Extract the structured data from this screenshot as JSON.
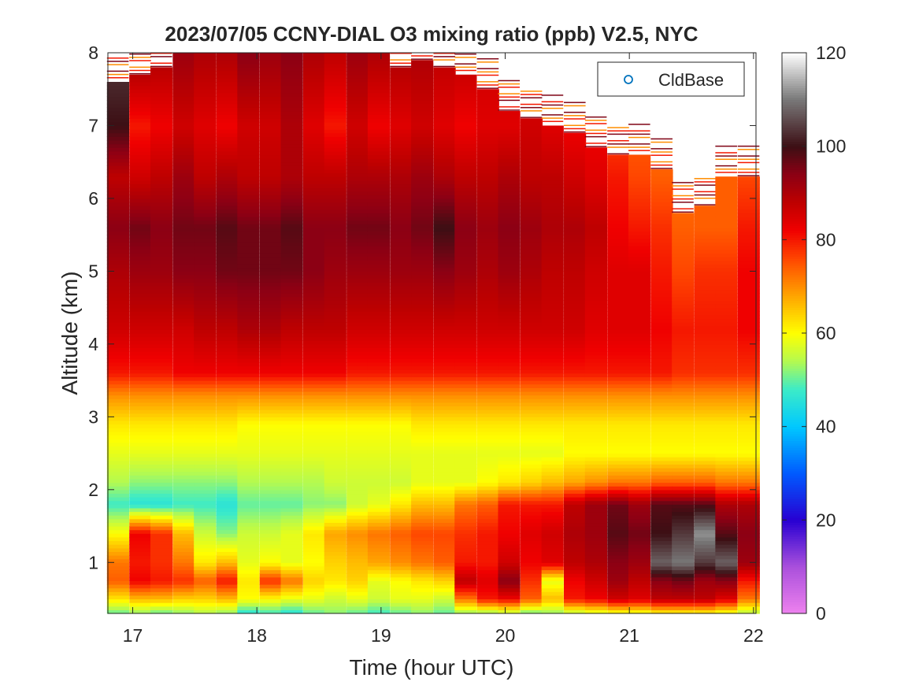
{
  "chart_data": {
    "type": "heatmap",
    "title": "2023/07/05 CCNY-DIAL O3 mixing ratio (ppb) V2.5, NYC",
    "xlabel": "Time (hour UTC)",
    "ylabel": "Altitude (km)",
    "xlim": [
      16.8,
      22.02
    ],
    "ylim": [
      0.3,
      8
    ],
    "xticks": [
      "17",
      "18",
      "19",
      "20",
      "21",
      "22"
    ],
    "yticks": [
      "1",
      "2",
      "3",
      "4",
      "5",
      "6",
      "7",
      "8"
    ],
    "colorbar": {
      "min": 0,
      "max": 120,
      "ticks": [
        "0",
        "20",
        "40",
        "60",
        "80",
        "100",
        "120"
      ]
    },
    "legend": {
      "position": "top-right",
      "entries": [
        "CldBase"
      ],
      "marker": "circle",
      "marker_color": "#0072bd"
    },
    "grid": false,
    "profile_times": [
      16.88,
      17.06,
      17.23,
      17.41,
      17.58,
      17.76,
      17.93,
      18.11,
      18.28,
      18.46,
      18.63,
      18.81,
      18.98,
      19.16,
      19.33,
      19.51,
      19.68,
      19.86,
      20.03,
      20.21,
      20.38,
      20.56,
      20.73,
      20.91,
      21.08,
      21.26,
      21.43,
      21.61,
      21.78,
      21.96
    ],
    "top_altitude_km": [
      7.6,
      7.7,
      7.8,
      8.0,
      8.0,
      8.0,
      8.0,
      8.0,
      8.0,
      8.0,
      8.0,
      8.0,
      8.0,
      7.8,
      7.9,
      7.8,
      7.7,
      7.5,
      7.2,
      7.1,
      7.0,
      6.9,
      6.7,
      6.6,
      6.6,
      6.4,
      5.8,
      5.9,
      6.3,
      6.3
    ],
    "ozone_ppb_profile_description_levels_km": [
      0.3,
      0.5,
      0.75,
      1.0,
      1.4,
      1.8,
      2.1,
      2.5,
      2.9,
      3.3,
      3.6,
      4.2,
      5.0,
      5.6,
      6.3,
      7.0,
      8.0
    ],
    "series": [
      {
        "name": "16.88",
        "values": [
          50,
          62,
          74,
          72,
          60,
          48,
          54,
          58,
          62,
          70,
          80,
          86,
          90,
          94,
          88,
          100,
          104
        ]
      },
      {
        "name": "17.06",
        "values": [
          52,
          66,
          82,
          80,
          82,
          46,
          52,
          58,
          62,
          70,
          80,
          86,
          92,
          96,
          86,
          80,
          92
        ]
      },
      {
        "name": "17.23",
        "values": [
          50,
          66,
          80,
          78,
          78,
          46,
          52,
          58,
          62,
          70,
          80,
          86,
          92,
          94,
          88,
          82,
          90
        ]
      },
      {
        "name": "17.41",
        "values": [
          52,
          64,
          78,
          72,
          66,
          48,
          52,
          58,
          62,
          70,
          82,
          86,
          94,
          96,
          92,
          86,
          92
        ]
      },
      {
        "name": "17.58",
        "values": [
          54,
          64,
          74,
          62,
          56,
          48,
          52,
          58,
          62,
          70,
          82,
          88,
          94,
          96,
          88,
          84,
          90
        ]
      },
      {
        "name": "17.76",
        "values": [
          52,
          66,
          80,
          66,
          52,
          46,
          52,
          58,
          62,
          70,
          82,
          88,
          96,
          98,
          90,
          82,
          90
        ]
      },
      {
        "name": "17.93",
        "values": [
          46,
          60,
          62,
          58,
          56,
          50,
          54,
          58,
          60,
          70,
          82,
          90,
          96,
          96,
          88,
          86,
          94
        ]
      },
      {
        "name": "18.11",
        "values": [
          48,
          60,
          78,
          60,
          56,
          50,
          54,
          58,
          60,
          70,
          82,
          90,
          96,
          96,
          88,
          86,
          92
        ]
      },
      {
        "name": "18.28",
        "values": [
          46,
          58,
          72,
          58,
          58,
          50,
          54,
          58,
          60,
          70,
          82,
          88,
          96,
          98,
          90,
          90,
          94
        ]
      },
      {
        "name": "18.46",
        "values": [
          50,
          58,
          64,
          60,
          62,
          52,
          54,
          58,
          60,
          70,
          82,
          88,
          94,
          94,
          88,
          84,
          90
        ]
      },
      {
        "name": "18.63",
        "values": [
          52,
          56,
          62,
          64,
          68,
          52,
          56,
          58,
          60,
          70,
          82,
          88,
          92,
          94,
          88,
          80,
          88
        ]
      },
      {
        "name": "18.81",
        "values": [
          50,
          58,
          64,
          66,
          70,
          56,
          56,
          58,
          60,
          70,
          80,
          86,
          92,
          96,
          90,
          86,
          92
        ]
      },
      {
        "name": "18.98",
        "values": [
          48,
          56,
          58,
          68,
          72,
          58,
          56,
          58,
          60,
          70,
          80,
          86,
          92,
          96,
          90,
          82,
          90
        ]
      },
      {
        "name": "19.16",
        "values": [
          50,
          58,
          60,
          70,
          74,
          62,
          56,
          58,
          60,
          70,
          80,
          86,
          92,
          94,
          90,
          84,
          90
        ]
      },
      {
        "name": "19.33",
        "values": [
          52,
          58,
          62,
          72,
          76,
          66,
          58,
          58,
          62,
          70,
          80,
          86,
          92,
          96,
          92,
          86,
          90
        ]
      },
      {
        "name": "19.51",
        "values": [
          50,
          56,
          64,
          74,
          76,
          66,
          58,
          58,
          62,
          70,
          80,
          86,
          94,
          100,
          90,
          84,
          88
        ]
      },
      {
        "name": "19.68",
        "values": [
          52,
          72,
          88,
          80,
          78,
          72,
          58,
          58,
          62,
          70,
          80,
          86,
          92,
          94,
          88,
          82,
          88
        ]
      },
      {
        "name": "19.86",
        "values": [
          52,
          80,
          84,
          80,
          80,
          74,
          60,
          58,
          62,
          70,
          80,
          86,
          90,
          92,
          88,
          84,
          86
        ]
      },
      {
        "name": "20.03",
        "values": [
          54,
          82,
          94,
          86,
          82,
          80,
          62,
          58,
          62,
          70,
          80,
          86,
          92,
          94,
          90,
          84,
          86
        ]
      },
      {
        "name": "20.21",
        "values": [
          50,
          74,
          78,
          82,
          84,
          80,
          64,
          58,
          62,
          70,
          80,
          86,
          90,
          92,
          88,
          86,
          86
        ]
      },
      {
        "name": "20.38",
        "values": [
          52,
          66,
          58,
          84,
          86,
          80,
          66,
          58,
          62,
          70,
          80,
          86,
          88,
          90,
          88,
          84,
          84
        ]
      },
      {
        "name": "20.56",
        "values": [
          54,
          80,
          82,
          88,
          90,
          88,
          68,
          60,
          62,
          70,
          80,
          86,
          88,
          90,
          86,
          82,
          82
        ]
      },
      {
        "name": "20.73",
        "values": [
          56,
          82,
          86,
          90,
          92,
          92,
          70,
          60,
          62,
          70,
          80,
          84,
          86,
          88,
          84,
          82,
          80
        ]
      },
      {
        "name": "20.91",
        "values": [
          58,
          86,
          92,
          94,
          98,
          96,
          72,
          60,
          62,
          70,
          80,
          84,
          84,
          82,
          80,
          76,
          78
        ]
      },
      {
        "name": "21.08",
        "values": [
          58,
          84,
          88,
          92,
          96,
          92,
          72,
          60,
          62,
          70,
          80,
          84,
          84,
          80,
          76,
          74,
          76
        ]
      },
      {
        "name": "21.26",
        "values": [
          60,
          88,
          94,
          108,
          100,
          98,
          74,
          60,
          62,
          70,
          80,
          82,
          80,
          78,
          74,
          72,
          72
        ]
      },
      {
        "name": "21.43",
        "values": [
          60,
          88,
          96,
          110,
          104,
          98,
          74,
          60,
          62,
          70,
          78,
          80,
          76,
          74,
          72,
          70,
          70
        ]
      },
      {
        "name": "21.61",
        "values": [
          60,
          88,
          92,
          104,
          112,
          98,
          74,
          60,
          62,
          70,
          78,
          80,
          78,
          74,
          74,
          72,
          72
        ]
      },
      {
        "name": "21.78",
        "values": [
          58,
          84,
          94,
          108,
          98,
          90,
          72,
          60,
          62,
          70,
          78,
          80,
          78,
          74,
          74,
          72,
          72
        ]
      },
      {
        "name": "21.96",
        "values": [
          54,
          72,
          80,
          92,
          94,
          90,
          72,
          60,
          62,
          70,
          78,
          82,
          82,
          80,
          76,
          74,
          74
        ]
      }
    ]
  }
}
